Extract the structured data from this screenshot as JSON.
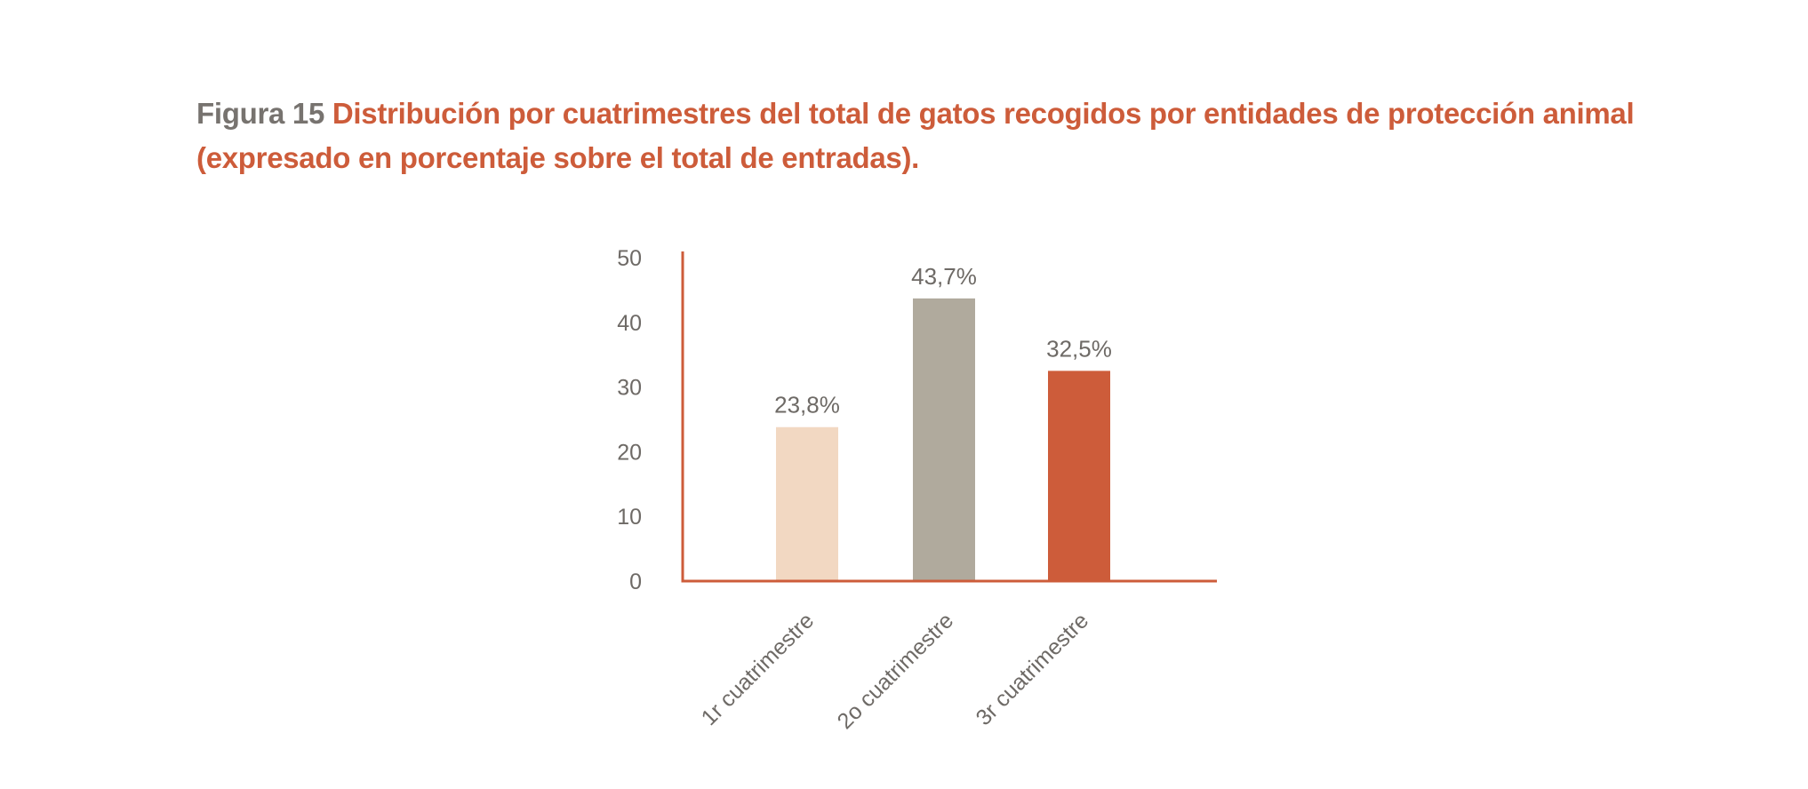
{
  "figure": {
    "label": "Figura 15",
    "title": "Distribución por cuatrimestres del total de gatos recogidos por entidades de protección animal (expresado en porcentaje sobre el total de entradas)."
  },
  "chart_data": {
    "type": "bar",
    "title": "Distribución por cuatrimestres del total de gatos recogidos por entidades de protección animal (expresado en porcentaje sobre el total de entradas).",
    "categories": [
      "1r cuatrimestre",
      "2o cuatrimestre",
      "3r cuatrimestre"
    ],
    "values": [
      23.8,
      43.7,
      32.5
    ],
    "value_labels": [
      "23,8%",
      "43,7%",
      "32,5%"
    ],
    "bar_colors": [
      "#f2d8c2",
      "#b0aa9d",
      "#cd5c3a"
    ],
    "axis_color": "#cd5c3a",
    "xlabel": "",
    "ylabel": "",
    "ylim": [
      0,
      50
    ],
    "yticks": [
      0,
      10,
      20,
      30,
      40,
      50
    ],
    "grid": false,
    "legend": "none"
  }
}
